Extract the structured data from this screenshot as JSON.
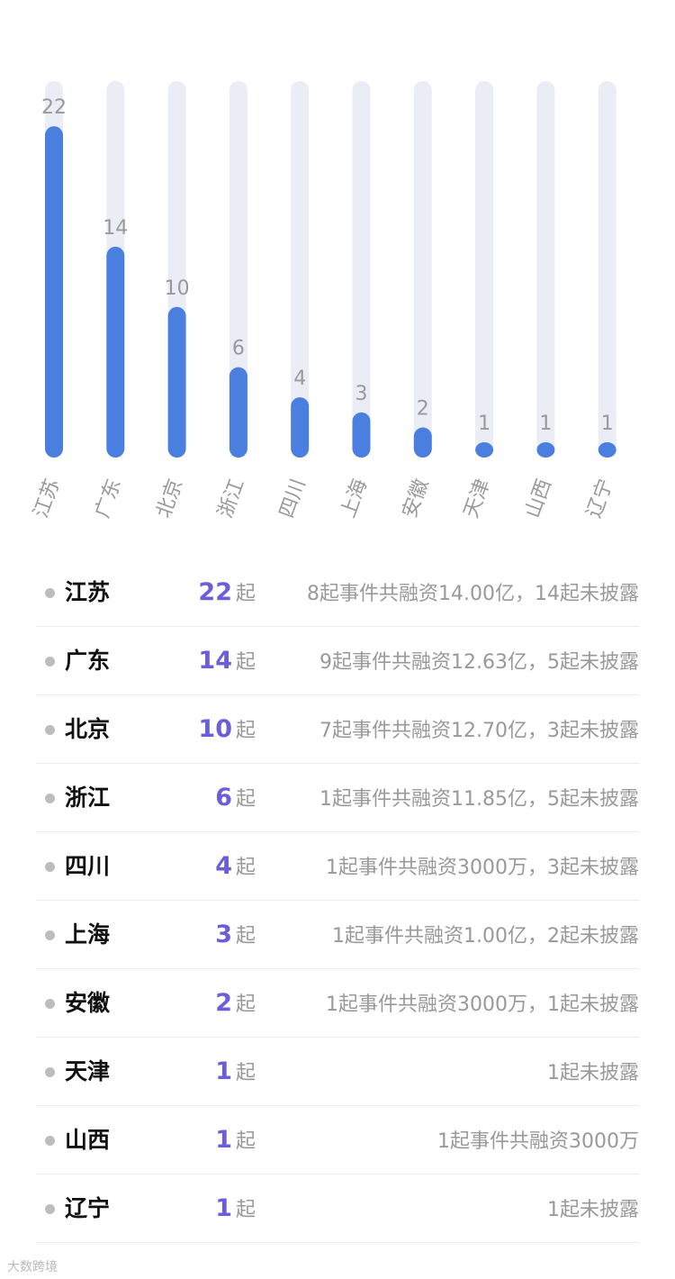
{
  "chart_data": {
    "type": "bar",
    "categories": [
      "江苏",
      "广东",
      "北京",
      "浙江",
      "四川",
      "上海",
      "安徽",
      "天津",
      "山西",
      "辽宁"
    ],
    "values": [
      22,
      14,
      10,
      6,
      4,
      3,
      2,
      1,
      1,
      1
    ],
    "ylim": [
      0,
      25
    ],
    "grid": false,
    "colors": {
      "bar": "#4a7fe0",
      "track": "#eaedf5"
    }
  },
  "list": {
    "unit": "起",
    "rows": [
      {
        "province": "江苏",
        "count": "22",
        "desc": "8起事件共融资14.00亿，14起未披露"
      },
      {
        "province": "广东",
        "count": "14",
        "desc": "9起事件共融资12.63亿，5起未披露"
      },
      {
        "province": "北京",
        "count": "10",
        "desc": "7起事件共融资12.70亿，3起未披露"
      },
      {
        "province": "浙江",
        "count": "6",
        "desc": "1起事件共融资11.85亿，5起未披露"
      },
      {
        "province": "四川",
        "count": "4",
        "desc": "1起事件共融资3000万，3起未披露"
      },
      {
        "province": "上海",
        "count": "3",
        "desc": "1起事件共融资1.00亿，2起未披露"
      },
      {
        "province": "安徽",
        "count": "2",
        "desc": "1起事件共融资3000万，1起未披露"
      },
      {
        "province": "天津",
        "count": "1",
        "desc": "1起未披露"
      },
      {
        "province": "山西",
        "count": "1",
        "desc": "1起事件共融资3000万"
      },
      {
        "province": "辽宁",
        "count": "1",
        "desc": "1起未披露"
      }
    ],
    "count_color": "#6a5fd8"
  },
  "watermark": "大数跨境"
}
